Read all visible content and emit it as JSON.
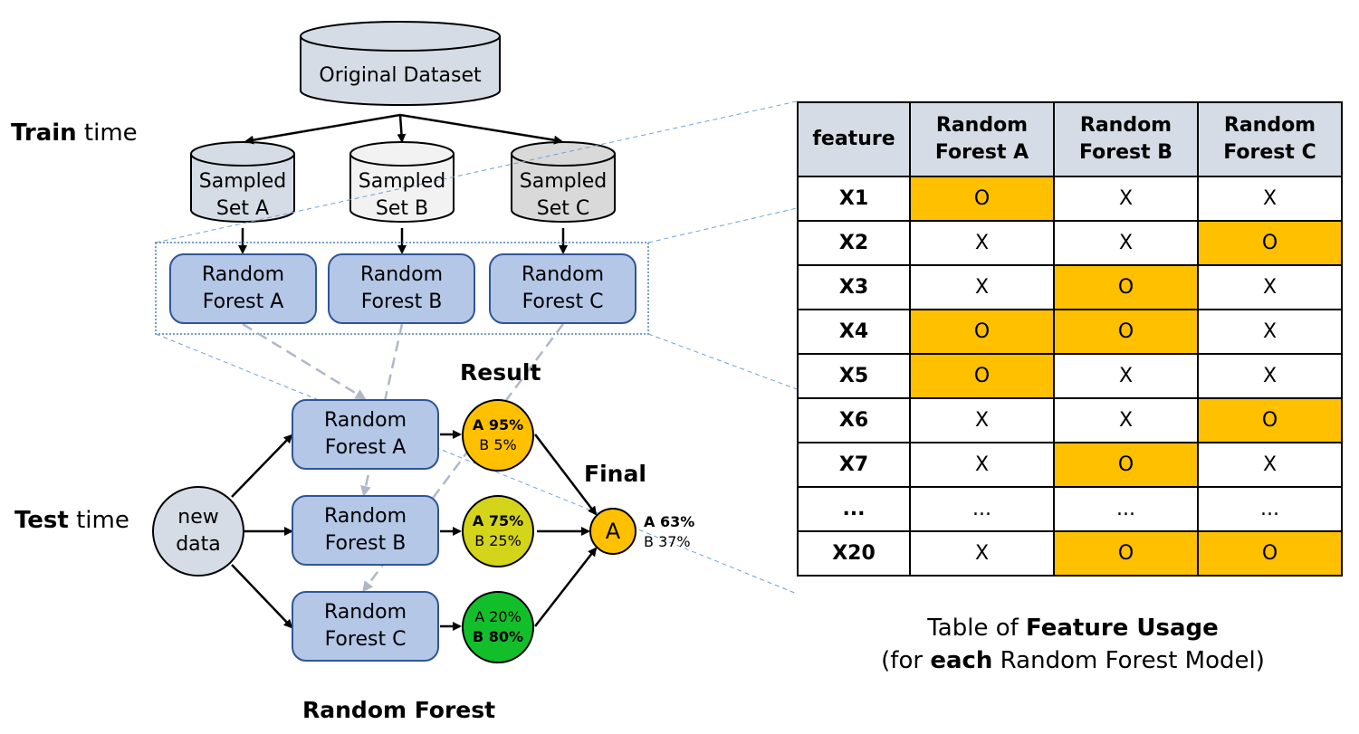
{
  "labels": {
    "train_bold": "Train",
    "train_rest": " time",
    "test_bold": "Test",
    "test_rest": " time",
    "result": "Result",
    "final": "Final",
    "bottom_title": "Random Forest"
  },
  "train": {
    "original": "Original Dataset",
    "sampled_a": [
      "Sampled",
      "Set A"
    ],
    "sampled_b": [
      "Sampled",
      "Set B"
    ],
    "sampled_c": [
      "Sampled",
      "Set C"
    ],
    "rf_a": [
      "Random",
      "Forest A"
    ],
    "rf_b": [
      "Random",
      "Forest B"
    ],
    "rf_c": [
      "Random",
      "Forest C"
    ]
  },
  "test": {
    "new_data": [
      "new",
      "data"
    ],
    "rf_a": [
      "Random",
      "Forest A"
    ],
    "rf_b": [
      "Random",
      "Forest B"
    ],
    "rf_c": [
      "Random",
      "Forest C"
    ],
    "result_a": {
      "line1": "A 95%",
      "line2": "B 5%"
    },
    "result_b": {
      "line1": "A 75%",
      "line2": "B 25%"
    },
    "result_c": {
      "line1": "A 20%",
      "line2": "B 80%"
    },
    "final_class": "A",
    "final_a": "A 63%",
    "final_b": "B 37%"
  },
  "colors": {
    "result_a": "#ffc000",
    "result_b": "#d4d41a",
    "result_c": "#12bf2a",
    "final": "#ffc000",
    "highlight": "#ffc000",
    "rf_fill": "#b4c7e7",
    "header_fill": "#d6dce5"
  },
  "table": {
    "headers": [
      "feature",
      "Random Forest A",
      "Random Forest B",
      "Random Forest C"
    ],
    "rows": [
      {
        "feature": "X1",
        "a": "O",
        "b": "X",
        "c": "X"
      },
      {
        "feature": "X2",
        "a": "X",
        "b": "X",
        "c": "O"
      },
      {
        "feature": "X3",
        "a": "X",
        "b": "O",
        "c": "X"
      },
      {
        "feature": "X4",
        "a": "O",
        "b": "O",
        "c": "X"
      },
      {
        "feature": "X5",
        "a": "O",
        "b": "X",
        "c": "X"
      },
      {
        "feature": "X6",
        "a": "X",
        "b": "X",
        "c": "O"
      },
      {
        "feature": "X7",
        "a": "X",
        "b": "O",
        "c": "X"
      },
      {
        "feature": "...",
        "a": "...",
        "b": "...",
        "c": "..."
      },
      {
        "feature": "X20",
        "a": "X",
        "b": "O",
        "c": "O"
      }
    ]
  },
  "caption": {
    "line1_pre": "Table of ",
    "line1_bold": "Feature Usage",
    "line2_pre": "(for ",
    "line2_bold": "each",
    "line2_post": " Random Forest Model)"
  }
}
